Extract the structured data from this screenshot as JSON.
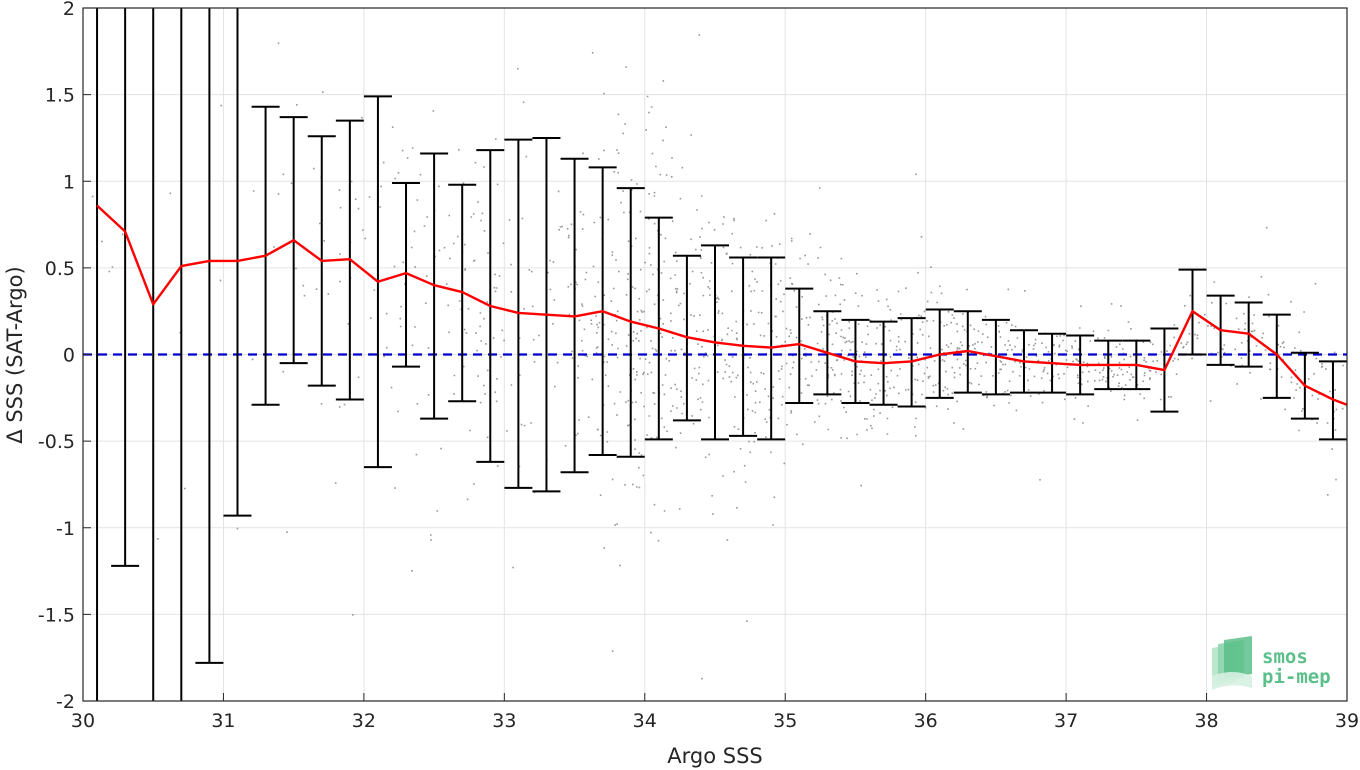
{
  "chart_data": {
    "type": "scatter",
    "title": "",
    "xlabel": "Argo SSS",
    "ylabel": "Δ SSS (SAT-Argo)",
    "xlim": [
      30,
      39
    ],
    "ylim": [
      -2,
      2
    ],
    "xticks": [
      30,
      31,
      32,
      33,
      34,
      35,
      36,
      37,
      38,
      39
    ],
    "yticks": [
      -2,
      -1.5,
      -1,
      -0.5,
      0,
      0.5,
      1,
      1.5,
      2
    ],
    "ytick_labels": [
      "-2",
      "-1.5",
      "-1",
      "-0.5",
      "0",
      "0.5",
      "1",
      "1.5",
      "2"
    ],
    "grid": true,
    "colors": {
      "scatter": "#8c8c8c",
      "mean_line": "#ff0000",
      "zero_line": "#0000cc",
      "errorbar": "#000000"
    },
    "series": [
      {
        "kind": "binned-mean",
        "x": [
          30.1,
          30.3,
          30.5,
          30.7,
          30.9,
          31.1,
          31.3,
          31.5,
          31.7,
          31.9,
          32.1,
          32.3,
          32.5,
          32.7,
          32.9,
          33.1,
          33.3,
          33.5,
          33.7,
          33.9,
          34.1,
          34.3,
          34.5,
          34.7,
          34.9,
          35.1,
          35.3,
          35.5,
          35.7,
          35.9,
          36.1,
          36.3,
          36.5,
          36.7,
          36.9,
          37.1,
          37.3,
          37.5,
          37.7,
          37.9,
          38.1,
          38.3,
          38.5,
          38.7,
          38.9,
          39.0
        ],
        "y": [
          0.86,
          0.71,
          0.29,
          0.51,
          0.54,
          0.54,
          0.57,
          0.66,
          0.54,
          0.55,
          0.42,
          0.47,
          0.4,
          0.36,
          0.28,
          0.24,
          0.23,
          0.22,
          0.25,
          0.19,
          0.15,
          0.1,
          0.07,
          0.05,
          0.04,
          0.06,
          0.01,
          -0.04,
          -0.05,
          -0.04,
          0.0,
          0.02,
          -0.01,
          -0.04,
          -0.05,
          -0.06,
          -0.06,
          -0.06,
          -0.09,
          0.25,
          0.14,
          0.12,
          0.0,
          -0.18,
          -0.26,
          -0.29
        ],
        "upper": [
          2.2,
          2.2,
          2.2,
          2.2,
          2.2,
          2.2,
          1.43,
          1.37,
          1.26,
          1.35,
          1.49,
          0.99,
          1.16,
          0.98,
          1.18,
          1.24,
          1.25,
          1.13,
          1.08,
          0.96,
          0.79,
          0.57,
          0.63,
          0.56,
          0.56,
          0.38,
          0.25,
          0.2,
          0.19,
          0.21,
          0.26,
          0.25,
          0.2,
          0.14,
          0.12,
          0.11,
          0.08,
          0.08,
          0.15,
          0.49,
          0.34,
          0.3,
          0.23,
          0.01,
          -0.04,
          null
        ],
        "lower": [
          -2.2,
          -1.22,
          -2.2,
          -2.2,
          -1.78,
          -0.93,
          -0.29,
          -0.05,
          -0.18,
          -0.26,
          -0.65,
          -0.07,
          -0.37,
          -0.27,
          -0.62,
          -0.77,
          -0.79,
          -0.68,
          -0.58,
          -0.59,
          -0.49,
          -0.38,
          -0.49,
          -0.47,
          -0.49,
          -0.28,
          -0.23,
          -0.28,
          -0.29,
          -0.3,
          -0.25,
          -0.22,
          -0.23,
          -0.22,
          -0.22,
          -0.23,
          -0.2,
          -0.2,
          -0.33,
          0.0,
          -0.06,
          -0.07,
          -0.25,
          -0.37,
          -0.49,
          null
        ]
      },
      {
        "kind": "reference-line",
        "y": 0
      }
    ]
  },
  "logo": {
    "line1": "smos",
    "line2": "pi-mep"
  }
}
